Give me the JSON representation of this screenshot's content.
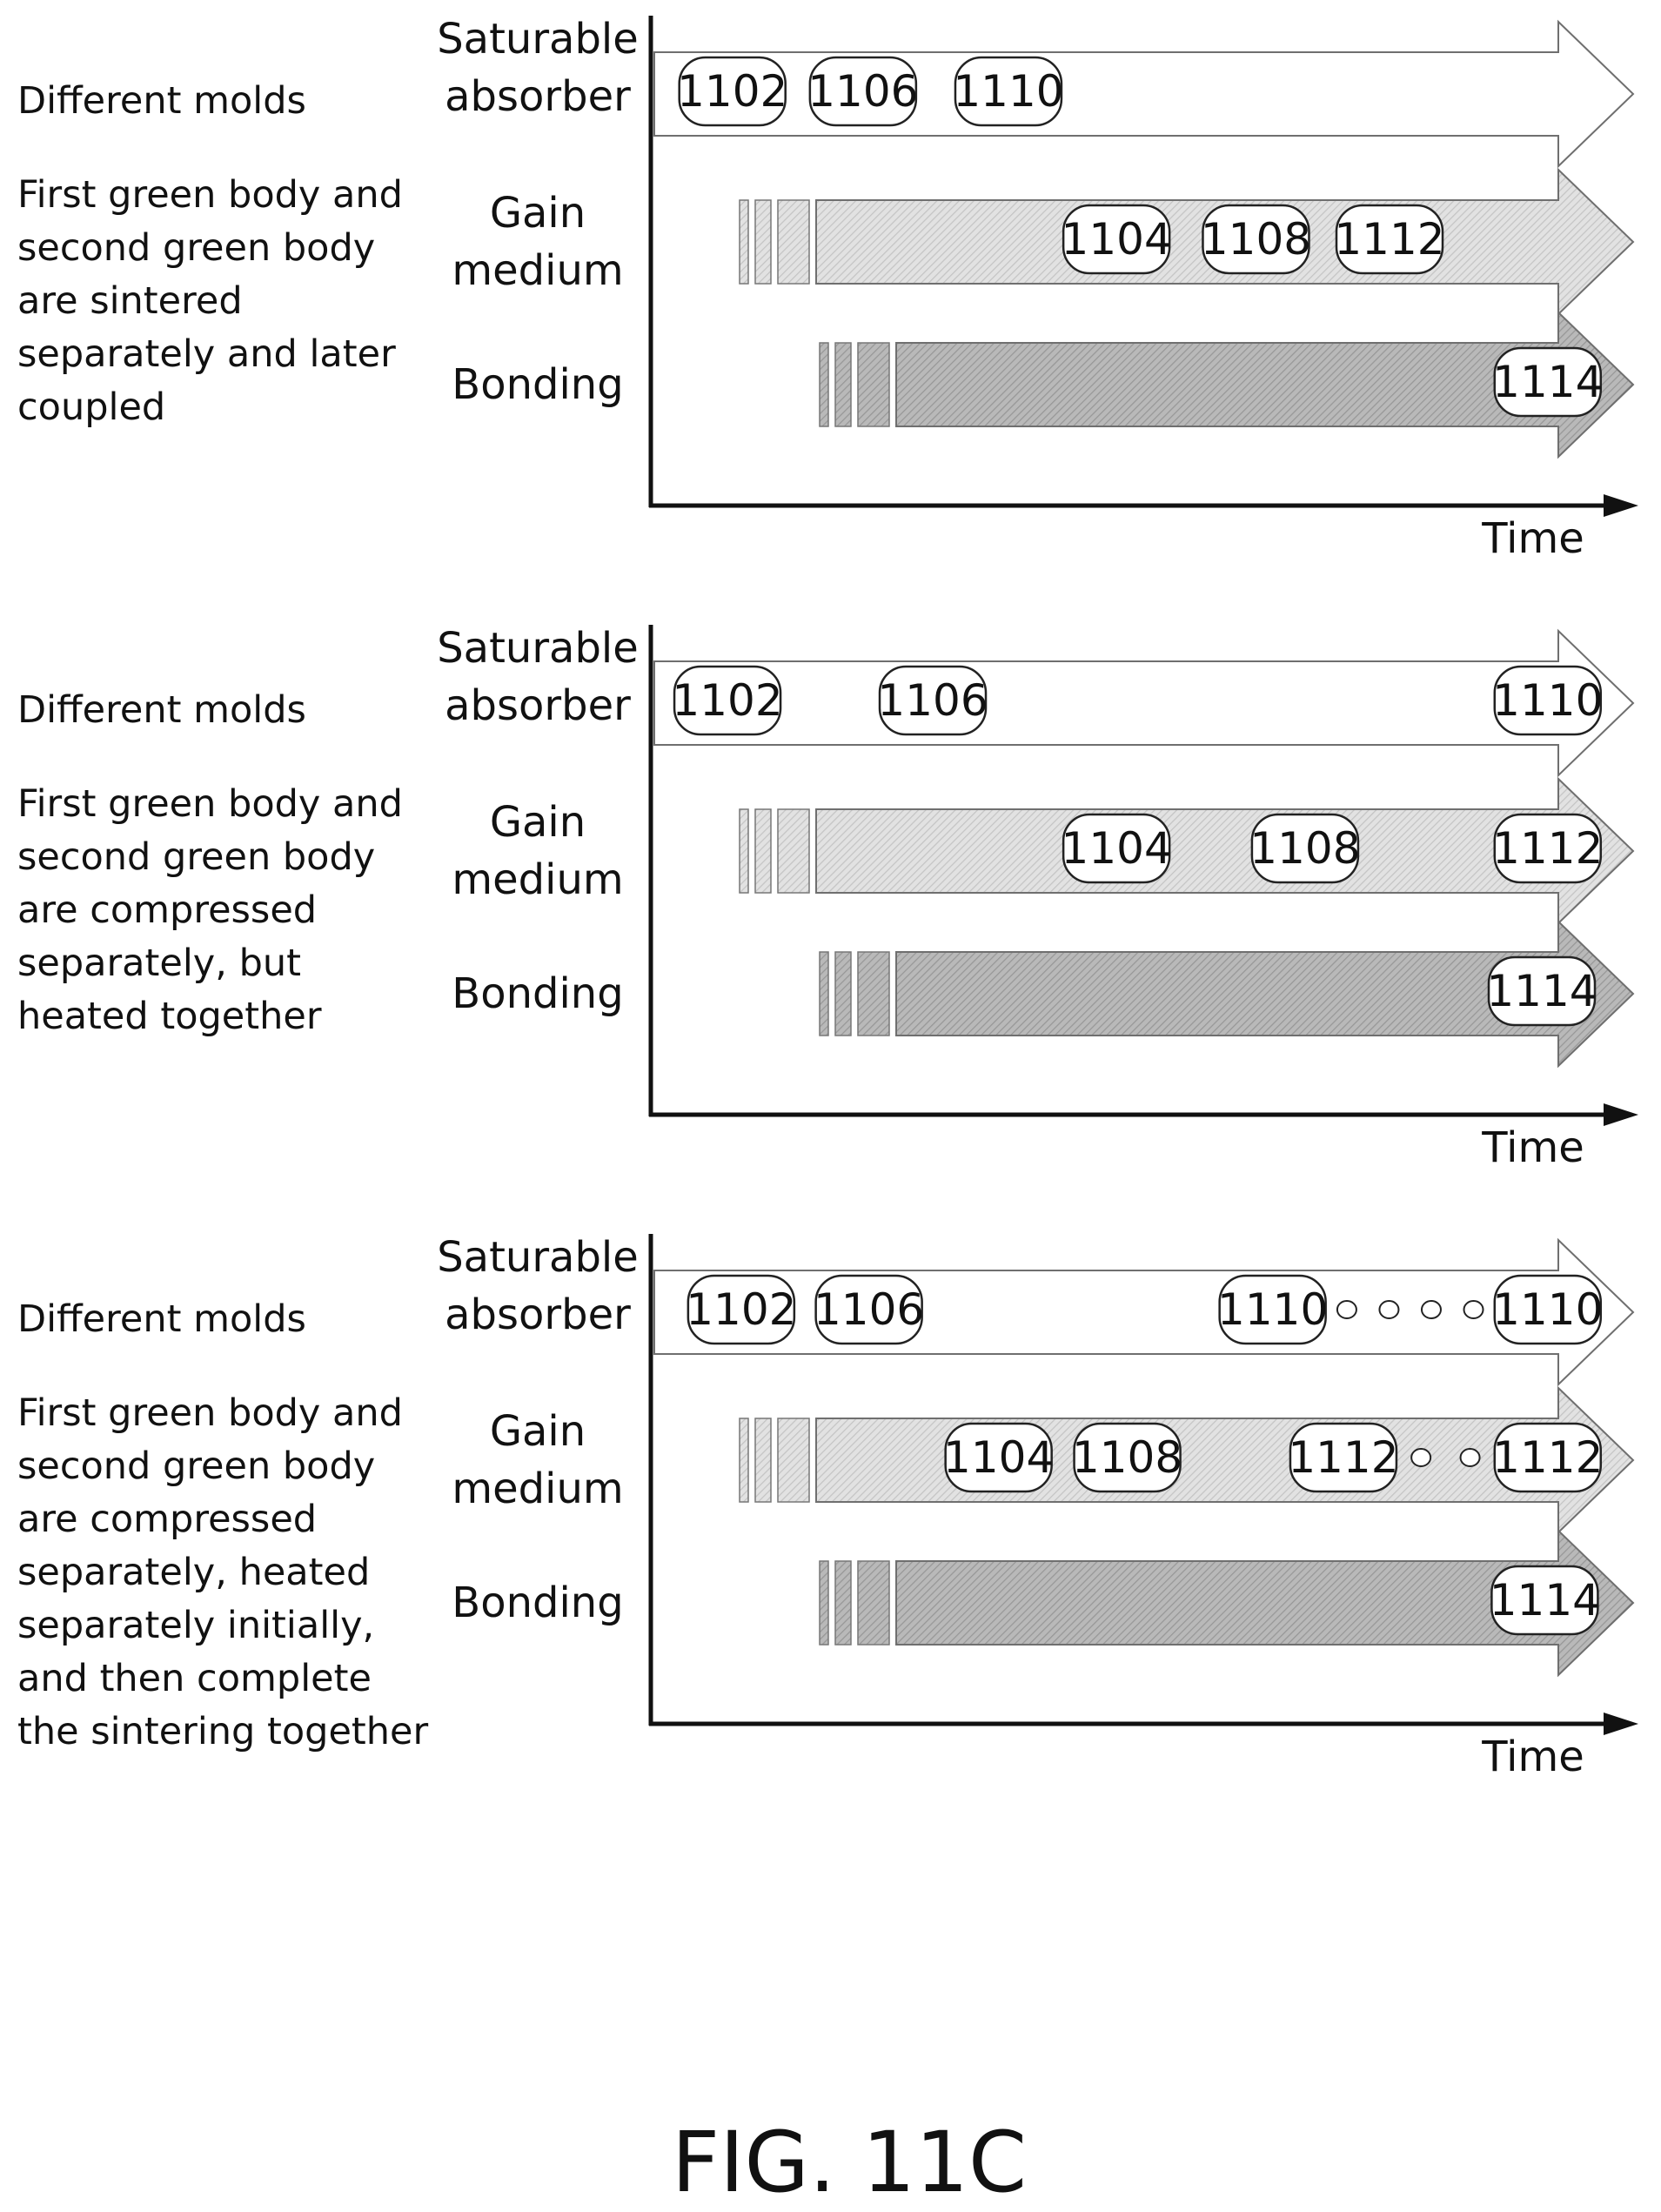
{
  "figure_caption": "FIG. 11C",
  "panels": [
    {
      "mold_label": "Different molds",
      "description_lines": [
        "First green body and",
        "second green body",
        "are sintered",
        "separately and later",
        "coupled"
      ],
      "lanes": [
        {
          "label_lines": [
            "Saturable",
            "absorber"
          ],
          "steps": [
            {
              "label": "1102",
              "t": 0.083
            },
            {
              "label": "1106",
              "t": 0.216
            },
            {
              "label": "1110",
              "t": 0.364
            }
          ]
        },
        {
          "label_lines": [
            "Gain",
            "medium"
          ],
          "steps": [
            {
              "label": "1104",
              "t": 0.474
            },
            {
              "label": "1108",
              "t": 0.616
            },
            {
              "label": "1112",
              "t": 0.752
            }
          ]
        },
        {
          "label_lines": [
            "Bonding"
          ],
          "steps": [
            {
              "label": "1114",
              "t": 0.913
            }
          ]
        }
      ],
      "connectors": [],
      "axis_label": "Time"
    },
    {
      "mold_label": "Different molds",
      "description_lines": [
        "First green body and",
        "second green body",
        "are compressed",
        "separately, but",
        "heated together"
      ],
      "lanes": [
        {
          "label_lines": [
            "Saturable",
            "absorber"
          ],
          "steps": [
            {
              "label": "1102",
              "t": 0.078
            },
            {
              "label": "1106",
              "t": 0.287
            },
            {
              "label": "1110",
              "t": 0.913
            }
          ]
        },
        {
          "label_lines": [
            "Gain",
            "medium"
          ],
          "steps": [
            {
              "label": "1104",
              "t": 0.474
            },
            {
              "label": "1108",
              "t": 0.666
            },
            {
              "label": "1112",
              "t": 0.913
            }
          ]
        },
        {
          "label_lines": [
            "Bonding"
          ],
          "steps": [
            {
              "label": "1114",
              "t": 0.907
            }
          ]
        }
      ],
      "connectors": [],
      "axis_label": "Time"
    },
    {
      "mold_label": "Different molds",
      "description_lines": [
        "First green body and",
        "second green body",
        "are compressed",
        "separately, heated",
        "separately initially,",
        "and then complete",
        "the sintering together"
      ],
      "lanes": [
        {
          "label_lines": [
            "Saturable",
            "absorber"
          ],
          "steps": [
            {
              "label": "1102",
              "t": 0.092
            },
            {
              "label": "1106",
              "t": 0.222
            },
            {
              "label": "1110",
              "t": 0.633
            },
            {
              "label": "1110",
              "t": 0.913
            }
          ]
        },
        {
          "label_lines": [
            "Gain",
            "medium"
          ],
          "steps": [
            {
              "label": "1104",
              "t": 0.354
            },
            {
              "label": "1108",
              "t": 0.485
            },
            {
              "label": "1112",
              "t": 0.705
            },
            {
              "label": "1112",
              "t": 0.913
            }
          ]
        },
        {
          "label_lines": [
            "Bonding"
          ],
          "steps": [
            {
              "label": "1114",
              "t": 0.91
            }
          ]
        }
      ],
      "connectors": [
        {
          "lane": 0,
          "from_step": 2,
          "to_step": 3,
          "circles": 4
        },
        {
          "lane": 1,
          "from_step": 2,
          "to_step": 3,
          "circles": 2
        }
      ],
      "axis_label": "Time"
    }
  ]
}
